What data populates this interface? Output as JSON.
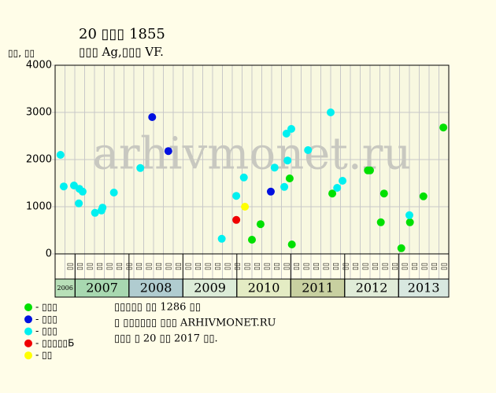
{
  "chart_data": {
    "type": "scatter",
    "title": "20 ▯▯▯ 1855",
    "subtitle": "▯▯▯ Ag,▯▯▯ VF.",
    "y_label": "▯▯, ▯▯",
    "watermark": "arhivmonet.ru",
    "ylim": [
      0,
      4000
    ],
    "yticks": [
      0,
      1000,
      2000,
      3000,
      4000
    ],
    "xlim": [
      2006.63,
      2013.93
    ],
    "xticks": [
      2007,
      2008,
      2009,
      2010,
      2011,
      2012,
      2013
    ],
    "years": [
      "2006",
      "2007",
      "2008",
      "2009",
      "2010",
      "2011",
      "2012",
      "2013"
    ],
    "year_colors": [
      "#b8e0b8",
      "#a8d8b0",
      "#b0ccd0",
      "#dcecd8",
      "#e4ecc4",
      "#c8d0a0",
      "#e0ecd8",
      "#d8e8e0"
    ],
    "month_labels": [
      "▯▯",
      "▯▯",
      "▯▯",
      "▯▯",
      "▯▯",
      "▯▯",
      "▯▯",
      "▯▯",
      "▯▯",
      "▯▯",
      "▯▯",
      "▯▯",
      "▯▯",
      "▯▯",
      "▯▯",
      "▯▯",
      "▯▯",
      "▯▯",
      "▯▯",
      "▯▯",
      "▯▯",
      "▯▯",
      "▯▯",
      "▯▯",
      "▯▯",
      "▯▯",
      "▯▯",
      "▯▯",
      "▯▯",
      "▯▯",
      "▯▯",
      "▯▯",
      "▯▯",
      "▯▯",
      "▯▯",
      "▯▯",
      "▯▯",
      "▯▯",
      "▯▯"
    ],
    "grid": true,
    "series": [
      {
        "name": "- ▯▯▯",
        "color": "#00e000",
        "x": [
          2010.28,
          2010.44,
          2010.98,
          2011.02,
          2011.77,
          2012.43,
          2012.47,
          2012.67,
          2012.73,
          2013.05,
          2013.21,
          2013.46,
          2013.83
        ],
        "values": [
          300,
          630,
          1600,
          200,
          1280,
          1770,
          1770,
          670,
          1280,
          120,
          670,
          1220,
          2680
        ]
      },
      {
        "name": "- ▯▯▯",
        "color": "#0010e0",
        "x": [
          2008.43,
          2008.73,
          2010.63
        ],
        "values": [
          2900,
          2180,
          1320
        ]
      },
      {
        "name": "- ▯▯▯",
        "color": "#00f0f0",
        "x": [
          2006.73,
          2006.79,
          2006.98,
          2007.07,
          2007.08,
          2007.14,
          2007.37,
          2007.51,
          2007.49,
          2007.72,
          2008.21,
          2009.72,
          2009.99,
          2010.13,
          2010.7,
          2010.88,
          2010.92,
          2010.94,
          2011.01,
          2011.32,
          2011.74,
          2011.86,
          2011.96,
          2013.2
        ],
        "values": [
          2100,
          1430,
          1450,
          1070,
          1380,
          1320,
          870,
          980,
          920,
          1300,
          1820,
          320,
          1230,
          1620,
          1830,
          1420,
          2550,
          1980,
          2650,
          2200,
          3000,
          1400,
          1550,
          820
        ]
      },
      {
        "name": "- ▯▯▯▯▯Б",
        "color": "#f00000",
        "x": [
          2009.99
        ],
        "values": [
          720
        ]
      },
      {
        "name": "- ▯▯",
        "color": "#ffff00",
        "x": [
          2010.15
        ],
        "values": [
          1000
        ]
      }
    ],
    "notes": [
      "▯▯▯▯▯ ▯▯ 1286 ▯▯",
      "▯ ▯▯▯▯▯▯ ▯▯▯ ARHIVMONET.RU",
      "▯▯▯ ▯ 20 ▯▯ 2017 ▯▯."
    ]
  }
}
